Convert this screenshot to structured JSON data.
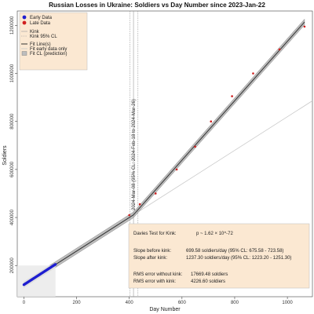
{
  "chart_data": {
    "type": "scatter",
    "title": "Russian Losses in Ukraine: Soldiers vs Day Number since 2023-Jan-22",
    "xlabel": "Day Number",
    "ylabel": "Soldiers",
    "xlim": [
      -25,
      1095
    ],
    "ylim": [
      70000,
      1260000
    ],
    "xticks": [
      0,
      200,
      400,
      600,
      800,
      1000
    ],
    "yticks": [
      200000,
      400000,
      600000,
      800000,
      1000000,
      1200000
    ],
    "grid": false,
    "legend_position": "top-left",
    "legend": {
      "early_label": "Early Data",
      "late_label": "Late Data",
      "kink_label": "Kink",
      "kink_cl_label": "Kink 95% CL",
      "fit_label": "Fit Line(s)",
      "fit_early_label": "Fit early data only",
      "fit_cl_label": "Fit CL (prediction)"
    },
    "colors": {
      "early": "#1f1fd0",
      "late": "#d01f1f",
      "fit": "#333333",
      "band": "#bdbdbd",
      "early_fit": "#c8c8c8",
      "box_bg": "#fbe8d2"
    },
    "kink": {
      "day": 416,
      "cl_low": 402,
      "cl_high": 433,
      "annotation": "2024-Mar-08 (95% CL: 2024-Feb-18 to 2024-Mar-26)"
    },
    "fit": {
      "intercept": 120000,
      "slope_before": 699.58,
      "slope_after": 1237.3,
      "x_start": 0,
      "x_end": 1065
    },
    "early_series": {
      "name": "Early Data",
      "x_range": [
        0,
        120
      ],
      "y_start": 120000,
      "y_end": 205000
    },
    "late_series": {
      "name": "Late Data",
      "x": [
        400,
        440,
        500,
        580,
        650,
        710,
        790,
        870,
        970,
        1065
      ],
      "y": [
        410000,
        455000,
        500000,
        600000,
        695000,
        800000,
        905000,
        1000000,
        1100000,
        1195000
      ]
    },
    "stats_box": {
      "davies_label": "Davies Test for Kink:",
      "p_value": "p ~ 1.62 × 10^-72",
      "slope_before_label": "Slope before kink:",
      "slope_before_value": "699.58 soldiers/day (95% CL:  675.58 -  723.58)",
      "slope_after_label": "Slope after kink:",
      "slope_after_value": "1237.30 soldiers/day (95% CL: 1223.20 - 1251.30)",
      "rms_without_label": "RMS error without kink:",
      "rms_without_value": "17669.48 soldiers",
      "rms_with_label": "RMS error with kink:",
      "rms_with_value": "4226.60 soldiers"
    }
  }
}
